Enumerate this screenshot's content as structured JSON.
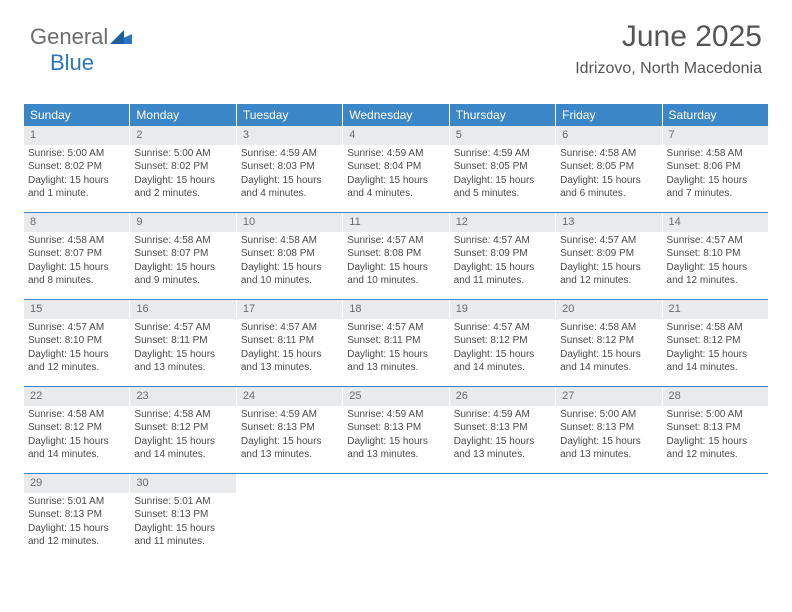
{
  "logo": {
    "general": "General",
    "blue": "Blue"
  },
  "colors": {
    "brand": "#3b86c6",
    "logo_blue": "#2a77bd",
    "text": "#4a4a4a",
    "daynum_bg": "#e9eaec"
  },
  "title": "June 2025",
  "location": "Idrizovo, North Macedonia",
  "weekdays": [
    "Sunday",
    "Monday",
    "Tuesday",
    "Wednesday",
    "Thursday",
    "Friday",
    "Saturday"
  ],
  "weeks": [
    [
      {
        "n": "1",
        "sr": "Sunrise: 5:00 AM",
        "ss": "Sunset: 8:02 PM",
        "dl": "Daylight: 15 hours and 1 minute."
      },
      {
        "n": "2",
        "sr": "Sunrise: 5:00 AM",
        "ss": "Sunset: 8:02 PM",
        "dl": "Daylight: 15 hours and 2 minutes."
      },
      {
        "n": "3",
        "sr": "Sunrise: 4:59 AM",
        "ss": "Sunset: 8:03 PM",
        "dl": "Daylight: 15 hours and 4 minutes."
      },
      {
        "n": "4",
        "sr": "Sunrise: 4:59 AM",
        "ss": "Sunset: 8:04 PM",
        "dl": "Daylight: 15 hours and 4 minutes."
      },
      {
        "n": "5",
        "sr": "Sunrise: 4:59 AM",
        "ss": "Sunset: 8:05 PM",
        "dl": "Daylight: 15 hours and 5 minutes."
      },
      {
        "n": "6",
        "sr": "Sunrise: 4:58 AM",
        "ss": "Sunset: 8:05 PM",
        "dl": "Daylight: 15 hours and 6 minutes."
      },
      {
        "n": "7",
        "sr": "Sunrise: 4:58 AM",
        "ss": "Sunset: 8:06 PM",
        "dl": "Daylight: 15 hours and 7 minutes."
      }
    ],
    [
      {
        "n": "8",
        "sr": "Sunrise: 4:58 AM",
        "ss": "Sunset: 8:07 PM",
        "dl": "Daylight: 15 hours and 8 minutes."
      },
      {
        "n": "9",
        "sr": "Sunrise: 4:58 AM",
        "ss": "Sunset: 8:07 PM",
        "dl": "Daylight: 15 hours and 9 minutes."
      },
      {
        "n": "10",
        "sr": "Sunrise: 4:58 AM",
        "ss": "Sunset: 8:08 PM",
        "dl": "Daylight: 15 hours and 10 minutes."
      },
      {
        "n": "11",
        "sr": "Sunrise: 4:57 AM",
        "ss": "Sunset: 8:08 PM",
        "dl": "Daylight: 15 hours and 10 minutes."
      },
      {
        "n": "12",
        "sr": "Sunrise: 4:57 AM",
        "ss": "Sunset: 8:09 PM",
        "dl": "Daylight: 15 hours and 11 minutes."
      },
      {
        "n": "13",
        "sr": "Sunrise: 4:57 AM",
        "ss": "Sunset: 8:09 PM",
        "dl": "Daylight: 15 hours and 12 minutes."
      },
      {
        "n": "14",
        "sr": "Sunrise: 4:57 AM",
        "ss": "Sunset: 8:10 PM",
        "dl": "Daylight: 15 hours and 12 minutes."
      }
    ],
    [
      {
        "n": "15",
        "sr": "Sunrise: 4:57 AM",
        "ss": "Sunset: 8:10 PM",
        "dl": "Daylight: 15 hours and 12 minutes."
      },
      {
        "n": "16",
        "sr": "Sunrise: 4:57 AM",
        "ss": "Sunset: 8:11 PM",
        "dl": "Daylight: 15 hours and 13 minutes."
      },
      {
        "n": "17",
        "sr": "Sunrise: 4:57 AM",
        "ss": "Sunset: 8:11 PM",
        "dl": "Daylight: 15 hours and 13 minutes."
      },
      {
        "n": "18",
        "sr": "Sunrise: 4:57 AM",
        "ss": "Sunset: 8:11 PM",
        "dl": "Daylight: 15 hours and 13 minutes."
      },
      {
        "n": "19",
        "sr": "Sunrise: 4:57 AM",
        "ss": "Sunset: 8:12 PM",
        "dl": "Daylight: 15 hours and 14 minutes."
      },
      {
        "n": "20",
        "sr": "Sunrise: 4:58 AM",
        "ss": "Sunset: 8:12 PM",
        "dl": "Daylight: 15 hours and 14 minutes."
      },
      {
        "n": "21",
        "sr": "Sunrise: 4:58 AM",
        "ss": "Sunset: 8:12 PM",
        "dl": "Daylight: 15 hours and 14 minutes."
      }
    ],
    [
      {
        "n": "22",
        "sr": "Sunrise: 4:58 AM",
        "ss": "Sunset: 8:12 PM",
        "dl": "Daylight: 15 hours and 14 minutes."
      },
      {
        "n": "23",
        "sr": "Sunrise: 4:58 AM",
        "ss": "Sunset: 8:12 PM",
        "dl": "Daylight: 15 hours and 14 minutes."
      },
      {
        "n": "24",
        "sr": "Sunrise: 4:59 AM",
        "ss": "Sunset: 8:13 PM",
        "dl": "Daylight: 15 hours and 13 minutes."
      },
      {
        "n": "25",
        "sr": "Sunrise: 4:59 AM",
        "ss": "Sunset: 8:13 PM",
        "dl": "Daylight: 15 hours and 13 minutes."
      },
      {
        "n": "26",
        "sr": "Sunrise: 4:59 AM",
        "ss": "Sunset: 8:13 PM",
        "dl": "Daylight: 15 hours and 13 minutes."
      },
      {
        "n": "27",
        "sr": "Sunrise: 5:00 AM",
        "ss": "Sunset: 8:13 PM",
        "dl": "Daylight: 15 hours and 13 minutes."
      },
      {
        "n": "28",
        "sr": "Sunrise: 5:00 AM",
        "ss": "Sunset: 8:13 PM",
        "dl": "Daylight: 15 hours and 12 minutes."
      }
    ],
    [
      {
        "n": "29",
        "sr": "Sunrise: 5:01 AM",
        "ss": "Sunset: 8:13 PM",
        "dl": "Daylight: 15 hours and 12 minutes."
      },
      {
        "n": "30",
        "sr": "Sunrise: 5:01 AM",
        "ss": "Sunset: 8:13 PM",
        "dl": "Daylight: 15 hours and 11 minutes."
      },
      null,
      null,
      null,
      null,
      null
    ]
  ]
}
